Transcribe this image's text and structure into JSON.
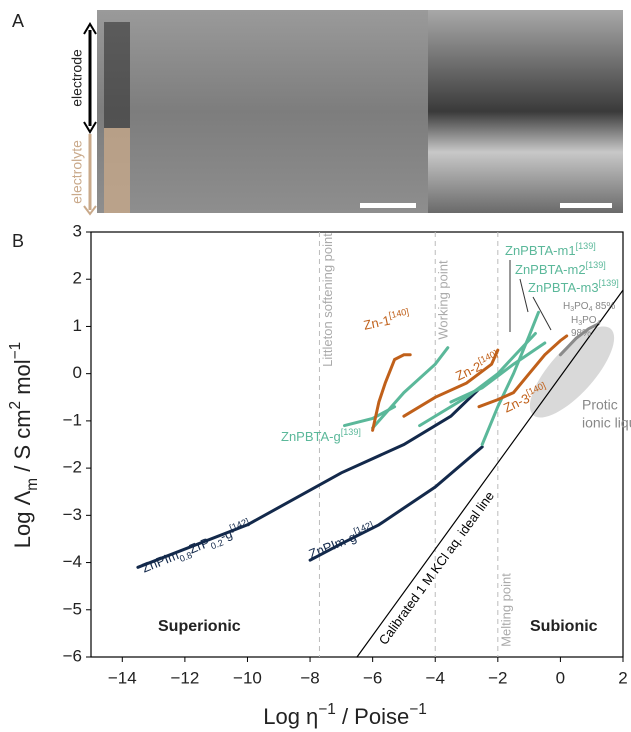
{
  "panel_a": {
    "label": "A",
    "electrode": "electrode",
    "electrolyte": "electrolyte"
  },
  "chart_data": {
    "type": "line",
    "panel_label": "B",
    "xlabel": [
      {
        "text": "Log η"
      },
      {
        "text": "−1",
        "sup": true
      },
      {
        "text": " / Poise"
      },
      {
        "text": "−1",
        "sup": true
      }
    ],
    "ylabel": [
      {
        "text": "Log Λ"
      },
      {
        "text": "m",
        "sub": true
      },
      {
        "text": " / S cm"
      },
      {
        "text": "2",
        "sup": true
      },
      {
        "text": " mol"
      },
      {
        "text": "−1",
        "sup": true
      }
    ],
    "xlim": [
      -15,
      2
    ],
    "ylim": [
      -6,
      3
    ],
    "xticks": [
      {
        "value": -14,
        "label": "−14"
      },
      {
        "value": -12,
        "label": "−12"
      },
      {
        "value": -10,
        "label": "−10"
      },
      {
        "value": -8,
        "label": "−8"
      },
      {
        "value": -6,
        "label": "−6"
      },
      {
        "value": -4,
        "label": "−4"
      },
      {
        "value": -2,
        "label": "−2"
      },
      0,
      2
    ],
    "yticks": [
      {
        "value": -6,
        "label": "−6"
      },
      {
        "value": -5,
        "label": "−5"
      },
      {
        "value": -4,
        "label": "−4"
      },
      {
        "value": -3,
        "label": "−3"
      },
      {
        "value": -2,
        "label": "−2"
      },
      {
        "value": -1,
        "label": "−1"
      },
      0,
      1,
      2,
      3
    ],
    "reference_lines": [
      {
        "x": -7.7,
        "label": "Littleton softening point"
      },
      {
        "x": -4,
        "label": "Working point"
      },
      {
        "x": -2,
        "label": "Melting point"
      }
    ],
    "regions": {
      "superionic": "Superionic",
      "subionic": "Subionic",
      "protic": [
        "Protic",
        "ionic liquids"
      ]
    },
    "series": [
      {
        "label": [
          {
            "text": "ZnPIm"
          },
          {
            "text": "0.8",
            "sub": true
          },
          {
            "text": "ZrP"
          },
          {
            "text": "0.2",
            "sub": true
          },
          {
            "text": "-g"
          },
          {
            "text": "[142]",
            "sup": true
          }
        ],
        "color": "#13294b",
        "x": [
          -13.5,
          -10,
          -7,
          -5,
          -3.5,
          -2.5
        ],
        "values": [
          -4.1,
          -3.2,
          -2.1,
          -1.5,
          -0.9,
          -0.26
        ]
      },
      {
        "label": [
          {
            "text": "ZnPIm-g"
          },
          {
            "text": "[142]",
            "sup": true
          }
        ],
        "color": "#13294b",
        "x": [
          -8,
          -7,
          -5.8,
          -4,
          -2.5
        ],
        "values": [
          -3.95,
          -3.6,
          -3.2,
          -2.4,
          -1.55
        ]
      },
      {
        "label": [
          {
            "text": "ZnPBTA-g"
          },
          {
            "text": "[139]",
            "sup": true
          }
        ],
        "color": "#5bb89a",
        "x": [
          -6.9,
          -6,
          -5.3
        ],
        "values": [
          -1.1,
          -0.95,
          -0.7
        ]
      },
      {
        "color": "#5bb89a",
        "x": [
          -6,
          -5,
          -4,
          -3.6
        ],
        "values": [
          -1.15,
          -0.4,
          0.2,
          0.55
        ]
      },
      {
        "label": [
          {
            "text": "ZnPBTA-m1"
          },
          {
            "text": "[139]",
            "sup": true
          }
        ],
        "color": "#5bb89a",
        "x": [
          -4.5,
          -3,
          -2,
          -1.3,
          -0.8
        ],
        "values": [
          -1.1,
          -0.5,
          0,
          0.5,
          0.85
        ]
      },
      {
        "label": [
          {
            "text": "ZnPBTA-m2"
          },
          {
            "text": "[139]",
            "sup": true
          }
        ],
        "color": "#5bb89a",
        "x": [
          -2.5,
          -2,
          -1.5,
          -1,
          -0.7
        ],
        "values": [
          -1.5,
          -0.7,
          0,
          0.8,
          1.3
        ]
      },
      {
        "label": [
          {
            "text": "ZnPBTA-m3"
          },
          {
            "text": "[139]",
            "sup": true
          }
        ],
        "color": "#5bb89a",
        "x": [
          -3.5,
          -2.5,
          -1.5,
          -0.5
        ],
        "values": [
          -0.6,
          -0.3,
          0.2,
          0.65
        ]
      },
      {
        "label": [
          {
            "text": "Zn-1"
          },
          {
            "text": "[140]",
            "sup": true
          }
        ],
        "color": "#c0601a",
        "x": [
          -6,
          -5.8,
          -5.6,
          -5.3,
          -5,
          -4.8
        ],
        "values": [
          -1.2,
          -0.6,
          -0.2,
          0.3,
          0.4,
          0.4
        ]
      },
      {
        "label": [
          {
            "text": "Zn-2"
          },
          {
            "text": "[140]",
            "sup": true
          }
        ],
        "color": "#c0601a",
        "x": [
          -5,
          -4,
          -3,
          -2.2,
          -2
        ],
        "values": [
          -0.9,
          -0.5,
          -0.2,
          0.2,
          0.5
        ]
      },
      {
        "label": [
          {
            "text": "Zn-3"
          },
          {
            "text": "[140]",
            "sup": true
          }
        ],
        "color": "#c0601a",
        "x": [
          -2.6,
          -2,
          -1.5,
          -1,
          -0.5,
          0,
          0.2
        ],
        "values": [
          -0.7,
          -0.55,
          -0.4,
          0,
          0.4,
          0.7,
          0.8
        ]
      },
      {
        "color": "#8a8a8a",
        "x": [
          0,
          0.5,
          0.9,
          1.2
        ],
        "values": [
          0.4,
          0.75,
          0.95,
          1.05
        ]
      },
      {
        "label": [
          {
            "text": "Calibrated 1 M KCl aq. ideal line"
          }
        ],
        "color": "#000000",
        "x": [
          -6.5,
          2
        ],
        "values": [
          -6,
          1.77
        ]
      }
    ],
    "annotations": [
      [
        {
          "text": "H"
        },
        {
          "text": "3",
          "sub": true
        },
        {
          "text": "PO"
        },
        {
          "text": "4",
          "sub": true
        },
        {
          "text": " 85%"
        }
      ],
      [
        {
          "text": "H"
        },
        {
          "text": "3",
          "sub": true
        },
        {
          "text": "PO"
        },
        {
          "text": "4",
          "sub": true
        }
      ],
      [
        {
          "text": "98%"
        }
      ]
    ]
  }
}
